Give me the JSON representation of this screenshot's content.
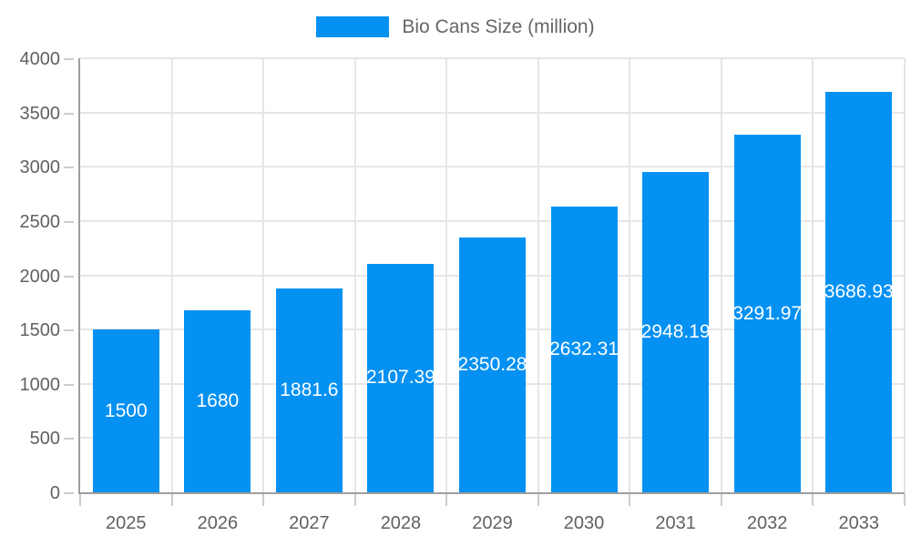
{
  "legend": {
    "label": "Bio Cans Size (million)"
  },
  "colors": {
    "bar": "#0591f2",
    "grid": "#e6e6e6",
    "tick": "#cccccc",
    "axis": "#9e9e9e",
    "axis_text": "#616161",
    "legend_text": "#666666",
    "bar_value_text": "#ffffff"
  },
  "chart_data": {
    "type": "bar",
    "title": "",
    "xlabel": "",
    "ylabel": "",
    "legend_position": "top",
    "grid": true,
    "categories": [
      "2025",
      "2026",
      "2027",
      "2028",
      "2029",
      "2030",
      "2031",
      "2032",
      "2033"
    ],
    "series": [
      {
        "name": "Bio Cans Size (million)",
        "values": [
          1500,
          1680,
          1881.6,
          2107.39,
          2350.28,
          2632.31,
          2948.19,
          3291.97,
          3686.93
        ],
        "value_labels": [
          "1500",
          "1680",
          "1881.6",
          "2107.39",
          "2350.28",
          "2632.31",
          "2948.19",
          "3291.97",
          "3686.93"
        ]
      }
    ],
    "ylim": [
      0,
      4000
    ],
    "ytick_step": 500,
    "ytick_labels": [
      "0",
      "500",
      "1000",
      "1500",
      "2000",
      "2500",
      "3000",
      "3500",
      "4000"
    ]
  }
}
